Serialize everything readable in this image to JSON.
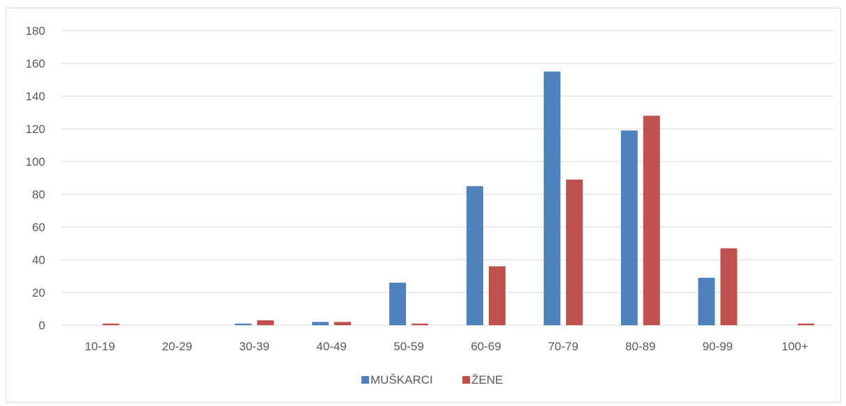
{
  "chart_data": {
    "type": "bar",
    "title": "",
    "xlabel": "",
    "ylabel": "",
    "categories": [
      "10-19",
      "20-29",
      "30-39",
      "40-49",
      "50-59",
      "60-69",
      "70-79",
      "80-89",
      "90-99",
      "100+"
    ],
    "series": [
      {
        "name": "MUŠKARCI",
        "color": "#4f81bd",
        "values": [
          0,
          0,
          1,
          2,
          26,
          85,
          155,
          119,
          29,
          0
        ]
      },
      {
        "name": "ŽENE",
        "color": "#c0504d",
        "values": [
          1,
          0,
          3,
          2,
          1,
          36,
          89,
          128,
          47,
          1
        ]
      }
    ],
    "ylim": [
      0,
      180
    ],
    "yticks": [
      0,
      20,
      40,
      60,
      80,
      100,
      120,
      140,
      160,
      180
    ],
    "grid": true,
    "legend_position": "bottom",
    "gridline_color": "#d9d9d9"
  }
}
